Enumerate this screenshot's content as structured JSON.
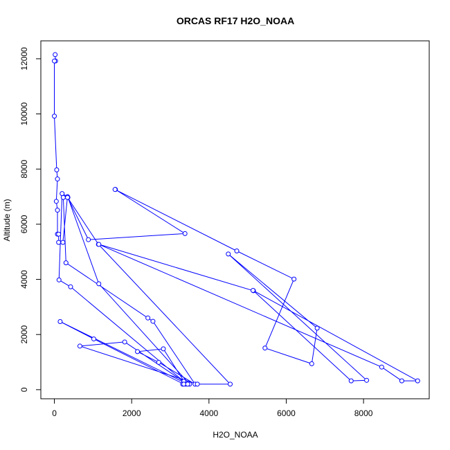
{
  "chart_data": {
    "type": "line",
    "title": "ORCAS RF17 H2O_NOAA",
    "xlabel": "H2O_NOAA",
    "ylabel": "Altitude (m)",
    "xlim": [
      -350,
      9700
    ],
    "ylim": [
      -330,
      12650
    ],
    "x_ticks": [
      0,
      2000,
      4000,
      6000,
      8000
    ],
    "y_ticks": [
      0,
      2000,
      4000,
      6000,
      8000,
      10000,
      12000
    ],
    "grid": false,
    "legend": "none",
    "line_color": "#0000ff",
    "marker": "open-circle",
    "series": [
      {
        "x": [
          20,
          30,
          0,
          0,
          60,
          80,
          50,
          80,
          80,
          110,
          110,
          220,
          340,
          200,
          120,
          420,
          3350,
          3320,
          3400,
          2820,
          2150,
          2700,
          3640,
          2550,
          2420,
          300,
          230,
          350,
          1150,
          3500,
          3350,
          1020,
          150,
          3450,
          1820,
          660,
          3700,
          4550,
          1140,
          340,
          880,
          3380,
          1580,
          1570,
          4720,
          6200,
          5450,
          6660,
          6800,
          4500,
          8080,
          7680,
          5150,
          1150,
          8470,
          8990,
          9400,
          5140
        ],
        "y": [
          12150,
          11920,
          11920,
          9920,
          7970,
          7640,
          6830,
          6510,
          5640,
          5640,
          5340,
          5340,
          7000,
          7110,
          3980,
          3730,
          300,
          200,
          200,
          1480,
          1380,
          990,
          200,
          2480,
          2600,
          4600,
          6970,
          6970,
          3840,
          200,
          200,
          1840,
          2470,
          200,
          1730,
          1580,
          200,
          200,
          5270,
          6970,
          5440,
          5660,
          7260,
          7260,
          5030,
          4010,
          1510,
          940,
          2230,
          4920,
          340,
          320,
          3590,
          5270,
          820,
          320,
          320,
          3600
        ]
      }
    ]
  }
}
